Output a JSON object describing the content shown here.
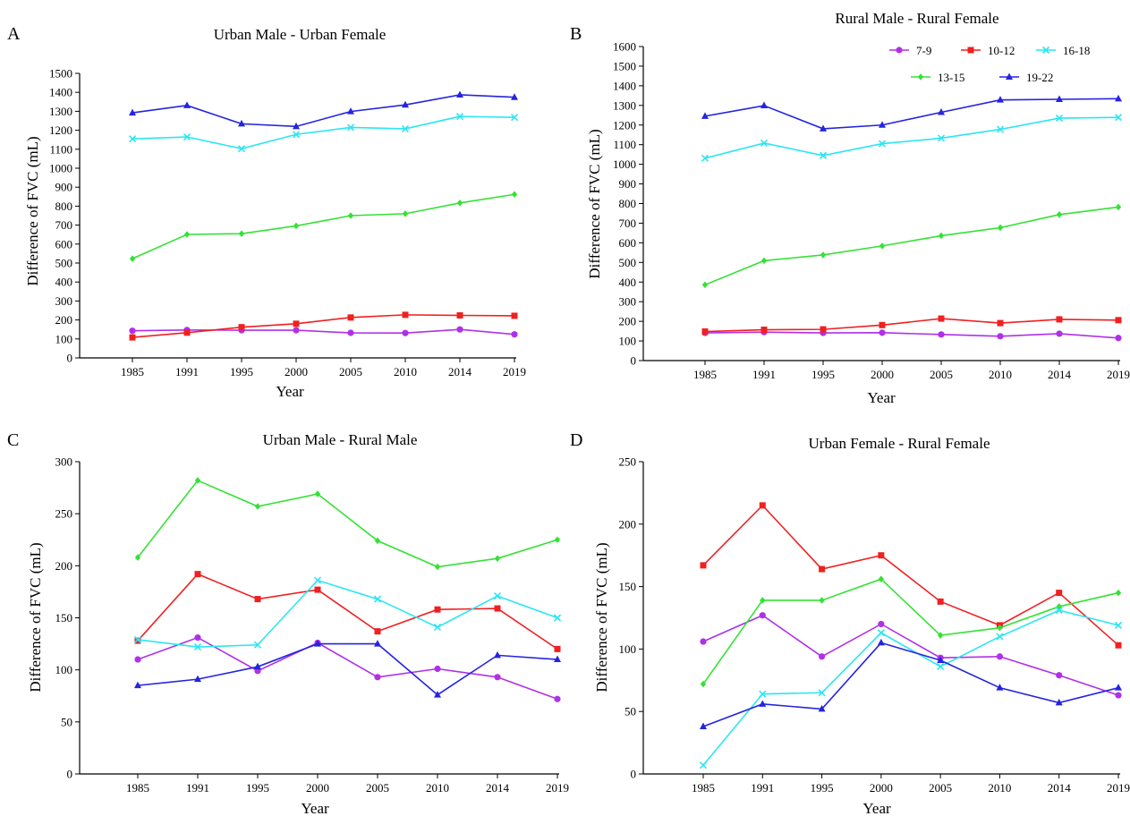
{
  "figure": {
    "legend": [
      {
        "name": "7-9",
        "color": "#b030e8",
        "marker": "circle"
      },
      {
        "name": "10-12",
        "color": "#f02020",
        "marker": "square"
      },
      {
        "name": "16-18",
        "color": "#2ae6f2",
        "marker": "x"
      },
      {
        "name": "13-15",
        "color": "#34e234",
        "marker": "diamond"
      },
      {
        "name": "19-22",
        "color": "#2424e0",
        "marker": "triangle"
      }
    ]
  },
  "chart_data": [
    {
      "type": "line",
      "panel": "A",
      "title": "Urban Male - Urban Female",
      "xlabel": "Year",
      "ylabel": "Difference of FVC (mL)",
      "categories": [
        "1985",
        "1991",
        "1995",
        "2000",
        "2005",
        "2010",
        "2014",
        "2019"
      ],
      "ylim": [
        0,
        1500
      ],
      "yticks": [
        0,
        100,
        200,
        300,
        400,
        500,
        600,
        700,
        800,
        900,
        1000,
        1100,
        1200,
        1300,
        1400,
        1500
      ],
      "series": [
        {
          "name": "7-9",
          "values": [
            143,
            147,
            146,
            146,
            132,
            131,
            150,
            124
          ]
        },
        {
          "name": "10-12",
          "values": [
            108,
            133,
            162,
            180,
            213,
            227,
            224,
            222
          ]
        },
        {
          "name": "13-15",
          "values": [
            523,
            651,
            655,
            696,
            750,
            760,
            817,
            862
          ]
        },
        {
          "name": "16-18",
          "values": [
            1155,
            1165,
            1103,
            1178,
            1215,
            1208,
            1273,
            1268
          ]
        },
        {
          "name": "19-22",
          "values": [
            1292,
            1331,
            1234,
            1220,
            1299,
            1334,
            1387,
            1374
          ]
        }
      ]
    },
    {
      "type": "line",
      "panel": "B",
      "title": "Rural Male - Rural Female",
      "xlabel": "Year",
      "ylabel": "Difference of FVC (mL)",
      "categories": [
        "1985",
        "1991",
        "1995",
        "2000",
        "2005",
        "2010",
        "2014",
        "2019"
      ],
      "ylim": [
        0,
        1600
      ],
      "yticks": [
        0,
        100,
        200,
        300,
        400,
        500,
        600,
        700,
        800,
        900,
        1000,
        1100,
        1200,
        1300,
        1400,
        1500,
        1600
      ],
      "legend": "top-right",
      "series": [
        {
          "name": "7-9",
          "values": [
            141,
            145,
            141,
            142,
            133,
            124,
            137,
            115
          ]
        },
        {
          "name": "10-12",
          "values": [
            148,
            157,
            159,
            181,
            214,
            191,
            210,
            206
          ]
        },
        {
          "name": "13-15",
          "values": [
            386,
            509,
            538,
            584,
            636,
            677,
            744,
            782
          ]
        },
        {
          "name": "16-18",
          "values": [
            1031,
            1108,
            1045,
            1105,
            1133,
            1178,
            1235,
            1239
          ]
        },
        {
          "name": "19-22",
          "values": [
            1245,
            1299,
            1181,
            1200,
            1265,
            1328,
            1331,
            1334
          ]
        }
      ]
    },
    {
      "type": "line",
      "panel": "C",
      "title": "Urban Male - Rural Male",
      "xlabel": "Year",
      "ylabel": "Difference of FVC (mL)",
      "categories": [
        "1985",
        "1991",
        "1995",
        "2000",
        "2005",
        "2010",
        "2014",
        "2019"
      ],
      "ylim": [
        0,
        300
      ],
      "yticks": [
        0,
        50,
        100,
        150,
        200,
        250,
        300
      ],
      "series": [
        {
          "name": "7-9",
          "values": [
            110,
            131,
            99,
            126,
            93,
            101,
            93,
            72
          ]
        },
        {
          "name": "10-12",
          "values": [
            128,
            192,
            168,
            177,
            137,
            158,
            159,
            120
          ]
        },
        {
          "name": "13-15",
          "values": [
            208,
            282,
            257,
            269,
            224,
            199,
            207,
            225
          ]
        },
        {
          "name": "16-18",
          "values": [
            129,
            122,
            124,
            186,
            168,
            141,
            171,
            150
          ]
        },
        {
          "name": "19-22",
          "values": [
            85,
            91,
            103,
            125,
            125,
            76,
            114,
            110
          ]
        }
      ]
    },
    {
      "type": "line",
      "panel": "D",
      "title": "Urban Female - Rural Female",
      "xlabel": "Year",
      "ylabel": "Difference of FVC (mL)",
      "categories": [
        "1985",
        "1991",
        "1995",
        "2000",
        "2005",
        "2010",
        "2014",
        "2019"
      ],
      "ylim": [
        0,
        250
      ],
      "yticks": [
        0,
        50,
        100,
        150,
        200,
        250
      ],
      "series": [
        {
          "name": "7-9",
          "values": [
            106,
            127,
            94,
            120,
            93,
            94,
            79,
            63
          ]
        },
        {
          "name": "10-12",
          "values": [
            167,
            215,
            164,
            175,
            138,
            119,
            145,
            103
          ]
        },
        {
          "name": "13-15",
          "values": [
            72,
            139,
            139,
            156,
            111,
            117,
            134,
            145
          ]
        },
        {
          "name": "16-18",
          "values": [
            7,
            64,
            65,
            113,
            86,
            110,
            131,
            119
          ]
        },
        {
          "name": "19-22",
          "values": [
            38,
            56,
            52,
            105,
            91,
            69,
            57,
            69
          ]
        }
      ]
    }
  ]
}
